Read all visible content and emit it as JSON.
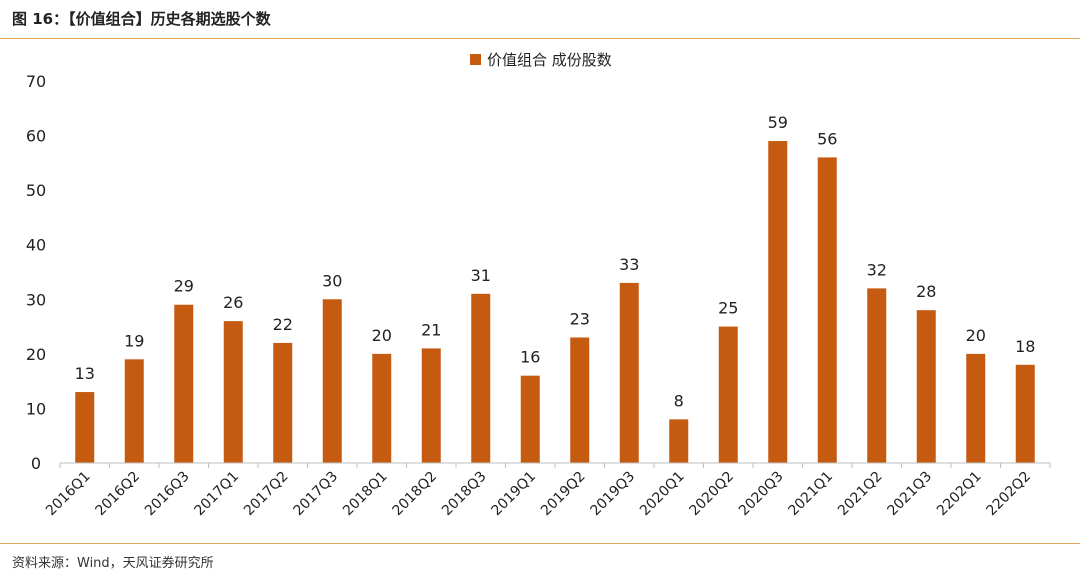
{
  "figure": {
    "title": "图 16：【价值组合】历史各期选股个数",
    "source": "资料来源：Wind，天风证券研究所"
  },
  "chart_data": {
    "type": "bar",
    "categories": [
      "2016Q1",
      "2016Q2",
      "2016Q3",
      "2017Q1",
      "2017Q2",
      "2017Q3",
      "2018Q1",
      "2018Q2",
      "2018Q3",
      "2019Q1",
      "2019Q2",
      "2019Q3",
      "2020Q1",
      "2020Q2",
      "2020Q3",
      "2021Q1",
      "2021Q2",
      "2021Q3",
      "2202Q1",
      "2202Q2"
    ],
    "series": [
      {
        "name": "价值组合 成份股数",
        "values": [
          13,
          19,
          29,
          26,
          22,
          30,
          20,
          21,
          31,
          16,
          23,
          33,
          8,
          25,
          59,
          56,
          32,
          28,
          20,
          18
        ]
      }
    ],
    "ylim": [
      0,
      70
    ],
    "yticks": [
      0,
      10,
      20,
      30,
      40,
      50,
      60,
      70
    ],
    "grid": false,
    "legend_position": "top-center",
    "data_labels": true,
    "colors": {
      "bar": "#c55a11"
    }
  }
}
